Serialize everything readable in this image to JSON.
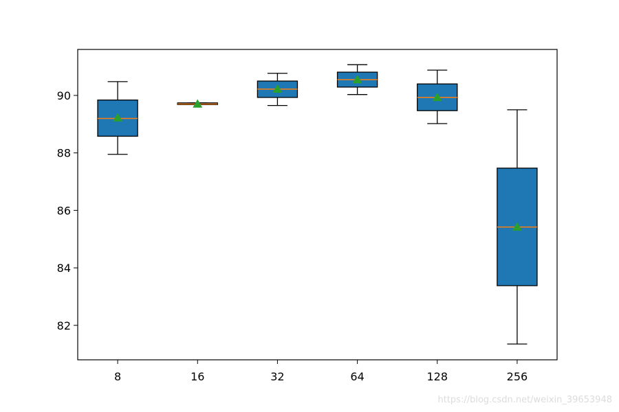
{
  "chart_data": {
    "type": "box",
    "title": "",
    "xlabel": "",
    "ylabel": "",
    "ylim": [
      80.8,
      91.6
    ],
    "yticks": [
      82,
      84,
      86,
      88,
      90
    ],
    "categories": [
      "8",
      "16",
      "32",
      "64",
      "128",
      "256"
    ],
    "boxes": [
      {
        "label": "8",
        "whisker_low": 87.95,
        "q1": 88.58,
        "median": 89.2,
        "q3": 89.84,
        "whisker_high": 90.48,
        "mean": 89.22
      },
      {
        "label": "16",
        "whisker_low": 89.68,
        "q1": 89.68,
        "median": 89.7,
        "q3": 89.74,
        "whisker_high": 89.74,
        "mean": 89.7
      },
      {
        "label": "32",
        "whisker_low": 89.65,
        "q1": 89.93,
        "median": 90.22,
        "q3": 90.5,
        "whisker_high": 90.77,
        "mean": 90.22
      },
      {
        "label": "64",
        "whisker_low": 90.03,
        "q1": 90.29,
        "median": 90.55,
        "q3": 90.81,
        "whisker_high": 91.07,
        "mean": 90.55
      },
      {
        "label": "128",
        "whisker_low": 89.02,
        "q1": 89.47,
        "median": 89.93,
        "q3": 90.4,
        "whisker_high": 90.88,
        "mean": 89.93
      },
      {
        "label": "256",
        "whisker_low": 81.35,
        "q1": 83.38,
        "median": 85.42,
        "q3": 87.47,
        "whisker_high": 89.5,
        "mean": 85.42
      }
    ],
    "box_color": "#1f77b4",
    "median_color": "#ff7f0e",
    "mean_marker_color": "#2ca02c"
  },
  "watermark": "https://blog.csdn.net/weixin_39653948"
}
